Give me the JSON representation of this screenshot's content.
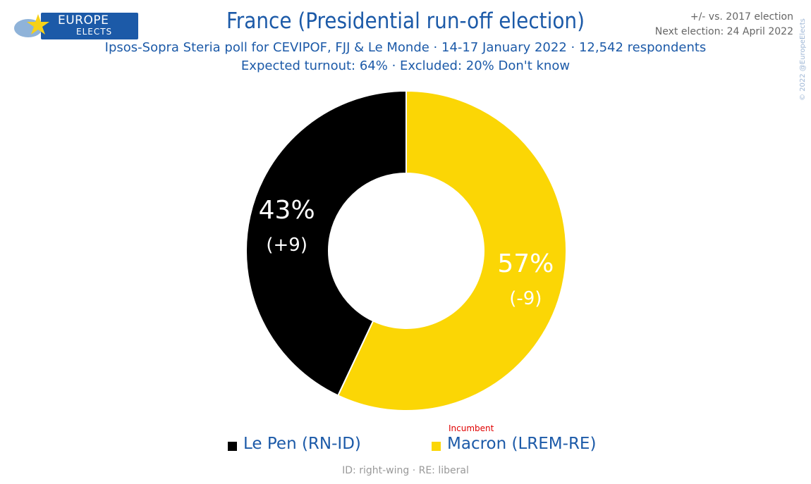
{
  "header": {
    "logo_line1": "EUROPE",
    "logo_line2": "ELECTS",
    "title": "France (Presidential run-off election)",
    "subtitle_line1": "Ipsos-Sopra Steria poll for CEVIPOF, FJJ & Le Monde · 14-17 January 2022 · 12,542 respondents",
    "subtitle_line2": "Expected turnout: 64% · Excluded: 20% Don't know",
    "corner_line1": "+/- vs. 2017 election",
    "corner_line2": "Next election: 24 April 2022",
    "copyright": "© 2022 @EuropeElects"
  },
  "chart_data": {
    "type": "pie",
    "donut": true,
    "series": [
      {
        "name": "Le Pen (RN-ID)",
        "value": 43,
        "value_label": "43%",
        "change_label": "(+9)",
        "color": "#000000",
        "label_color": "#ffffff"
      },
      {
        "name": "Macron (LREM-RE)",
        "value": 57,
        "value_label": "57%",
        "change_label": "(-9)",
        "color": "#fbd605",
        "label_color": "#ffffff",
        "note": "Incumbent",
        "note_color": "#e00000"
      }
    ]
  },
  "footnote": "ID: right-wing · RE: liberal",
  "colors": {
    "brand_blue": "#1c5aa8",
    "le_pen_black": "#000000",
    "macron_yellow": "#fbd605",
    "incumbent_red": "#e00000"
  }
}
